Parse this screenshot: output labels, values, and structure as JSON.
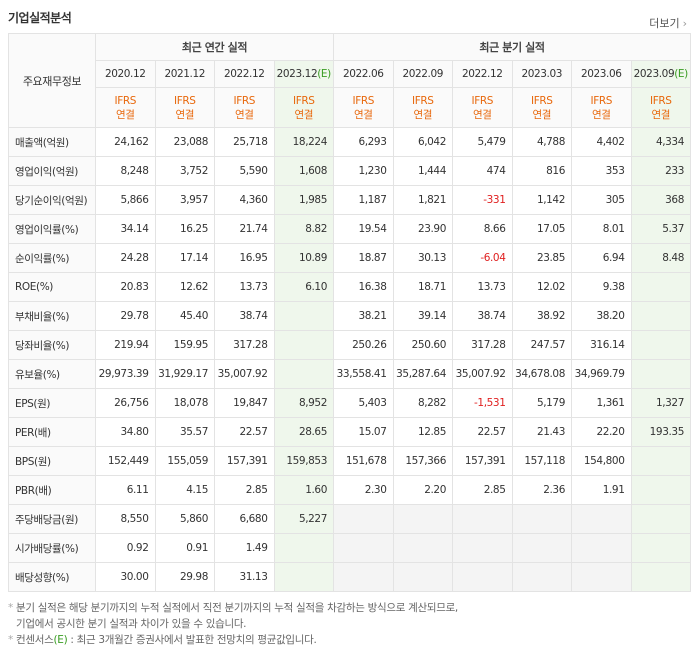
{
  "header": {
    "title": "기업실적분석",
    "more": "더보기"
  },
  "table": {
    "corner": "주요재무정보",
    "groups": [
      "최근 연간 실적",
      "최근 분기 실적"
    ],
    "columns": [
      {
        "date": "2020.12",
        "standard": "IFRS",
        "consolidation": "연결"
      },
      {
        "date": "2021.12",
        "standard": "IFRS",
        "consolidation": "연결"
      },
      {
        "date": "2022.12",
        "standard": "IFRS",
        "consolidation": "연결"
      },
      {
        "date": "2023.12",
        "estimate": "(E)",
        "standard": "IFRS",
        "consolidation": "연결"
      },
      {
        "date": "2022.06",
        "standard": "IFRS",
        "consolidation": "연결"
      },
      {
        "date": "2022.09",
        "standard": "IFRS",
        "consolidation": "연결"
      },
      {
        "date": "2022.12",
        "standard": "IFRS",
        "consolidation": "연결"
      },
      {
        "date": "2023.03",
        "standard": "IFRS",
        "consolidation": "연결"
      },
      {
        "date": "2023.06",
        "standard": "IFRS",
        "consolidation": "연결"
      },
      {
        "date": "2023.09",
        "estimate": "(E)",
        "standard": "IFRS",
        "consolidation": "연결"
      }
    ],
    "rows": [
      {
        "label": "매출액(억원)",
        "values": [
          "24,162",
          "23,088",
          "25,718",
          "18,224",
          "6,293",
          "6,042",
          "5,479",
          "4,788",
          "4,402",
          "4,334"
        ]
      },
      {
        "label": "영업이익(억원)",
        "values": [
          "8,248",
          "3,752",
          "5,590",
          "1,608",
          "1,230",
          "1,444",
          "474",
          "816",
          "353",
          "233"
        ]
      },
      {
        "label": "당기순이익(억원)",
        "values": [
          "5,866",
          "3,957",
          "4,360",
          "1,985",
          "1,187",
          "1,821",
          "-331",
          "1,142",
          "305",
          "368"
        ]
      },
      {
        "label": "영업이익률(%)",
        "values": [
          "34.14",
          "16.25",
          "21.74",
          "8.82",
          "19.54",
          "23.90",
          "8.66",
          "17.05",
          "8.01",
          "5.37"
        ]
      },
      {
        "label": "순이익률(%)",
        "values": [
          "24.28",
          "17.14",
          "16.95",
          "10.89",
          "18.87",
          "30.13",
          "-6.04",
          "23.85",
          "6.94",
          "8.48"
        ]
      },
      {
        "label": "ROE(%)",
        "values": [
          "20.83",
          "12.62",
          "13.73",
          "6.10",
          "16.38",
          "18.71",
          "13.73",
          "12.02",
          "9.38",
          null
        ]
      },
      {
        "label": "부채비율(%)",
        "values": [
          "29.78",
          "45.40",
          "38.74",
          null,
          "38.21",
          "39.14",
          "38.74",
          "38.92",
          "38.20",
          null
        ]
      },
      {
        "label": "당좌비율(%)",
        "values": [
          "219.94",
          "159.95",
          "317.28",
          null,
          "250.26",
          "250.60",
          "317.28",
          "247.57",
          "316.14",
          null
        ]
      },
      {
        "label": "유보율(%)",
        "values": [
          "29,973.39",
          "31,929.17",
          "35,007.92",
          null,
          "33,558.41",
          "35,287.64",
          "35,007.92",
          "34,678.08",
          "34,969.79",
          null
        ]
      },
      {
        "label": "EPS(원)",
        "values": [
          "26,756",
          "18,078",
          "19,847",
          "8,952",
          "5,403",
          "8,282",
          "-1,531",
          "5,179",
          "1,361",
          "1,327"
        ]
      },
      {
        "label": "PER(배)",
        "values": [
          "34.80",
          "35.57",
          "22.57",
          "28.65",
          "15.07",
          "12.85",
          "22.57",
          "21.43",
          "22.20",
          "193.35"
        ]
      },
      {
        "label": "BPS(원)",
        "values": [
          "152,449",
          "155,059",
          "157,391",
          "159,853",
          "151,678",
          "157,366",
          "157,391",
          "157,118",
          "154,800",
          null
        ]
      },
      {
        "label": "PBR(배)",
        "values": [
          "6.11",
          "4.15",
          "2.85",
          "1.60",
          "2.30",
          "2.20",
          "2.85",
          "2.36",
          "1.91",
          null
        ]
      },
      {
        "label": "주당배당금(원)",
        "values": [
          "8,550",
          "5,860",
          "6,680",
          "5,227",
          null,
          null,
          null,
          null,
          null,
          null
        ]
      },
      {
        "label": "시가배당률(%)",
        "values": [
          "0.92",
          "0.91",
          "1.49",
          null,
          null,
          null,
          null,
          null,
          null,
          null
        ]
      },
      {
        "label": "배당성향(%)",
        "values": [
          "30.00",
          "29.98",
          "31.13",
          null,
          null,
          null,
          null,
          null,
          null,
          null
        ]
      }
    ]
  },
  "footnotes": [
    {
      "lines": [
        "분기 실적은 해당 분기까지의 누적 실적에서 직전 분기까지의 누적 실적을 차감하는 방식으로 계산되므로,",
        "기업에서 공시한 분기 실적과 차이가 있을 수 있습니다."
      ]
    },
    {
      "term": "컨센서스",
      "estimate": "(E)",
      "text": ": 최근 3개월간 증권사에서 발표한 전망치의 평균값입니다."
    }
  ]
}
